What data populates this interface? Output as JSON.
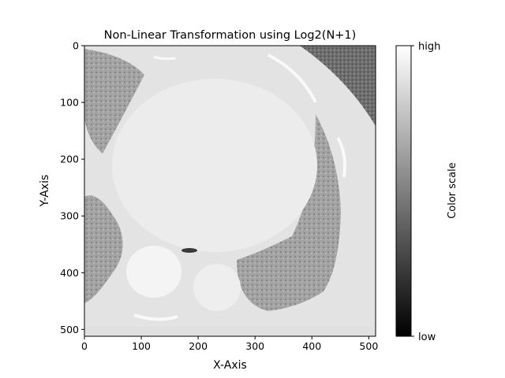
{
  "chart_data": {
    "type": "heatmap",
    "title": "Non-Linear Transformation using Log2(N+1)",
    "xlabel": "X-Axis",
    "ylabel": "Y-Axis",
    "xlim": [
      0,
      512
    ],
    "ylim": [
      512,
      0
    ],
    "x_ticks": [
      "0",
      "100",
      "200",
      "300",
      "400",
      "500"
    ],
    "y_ticks": [
      "0",
      "100",
      "200",
      "300",
      "400",
      "500"
    ],
    "x_tick_values": [
      0,
      100,
      200,
      300,
      400,
      500
    ],
    "y_tick_values": [
      0,
      100,
      200,
      300,
      400,
      500
    ],
    "colormap": "gray",
    "colorbar": {
      "label": "Color scale",
      "ticks": [
        "high",
        "low"
      ],
      "top_color": "#ffffff",
      "bottom_color": "#000000"
    },
    "image_description_colors": {
      "tissue": "#e4e4e4",
      "heart": "#ebebeb",
      "lung": "#9a9a9a",
      "outside": "#6e6e6e"
    }
  }
}
